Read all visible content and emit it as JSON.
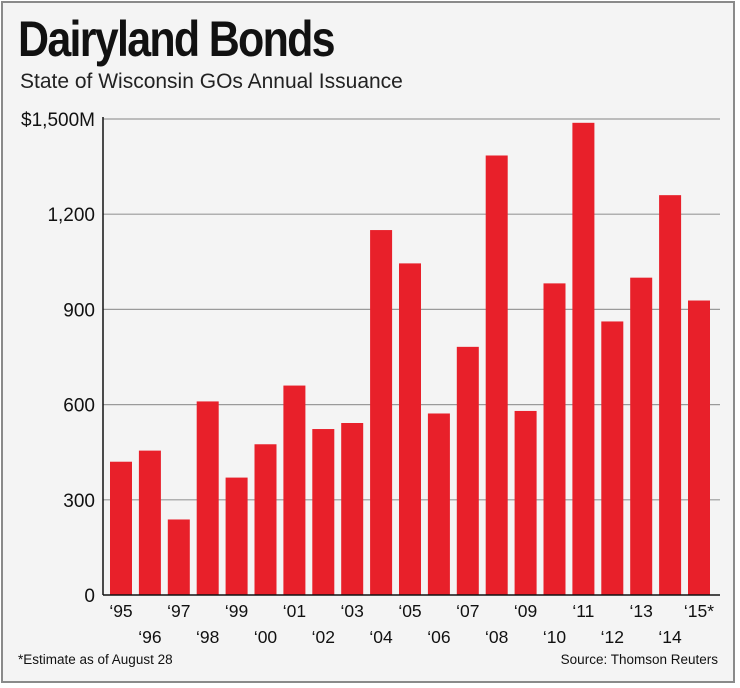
{
  "chart_data": {
    "type": "bar",
    "title": "Dairyland Bonds",
    "subtitle": "State of Wisconsin GOs Annual Issuance",
    "categories": [
      "‘95",
      "‘96",
      "‘97",
      "‘98",
      "‘99",
      "‘00",
      "‘01",
      "‘02",
      "‘03",
      "‘04",
      "‘05",
      "‘06",
      "‘07",
      "‘08",
      "‘09",
      "‘10",
      "‘11",
      "‘12",
      "‘13",
      "‘14",
      "‘15*"
    ],
    "values": [
      420,
      455,
      238,
      610,
      370,
      475,
      660,
      523,
      542,
      1150,
      1045,
      572,
      782,
      1385,
      580,
      982,
      1488,
      862,
      1000,
      1260,
      928
    ],
    "ylim": [
      0,
      1500
    ],
    "yticks": [
      0,
      300,
      600,
      900,
      1200,
      1500
    ],
    "ytick_labels": [
      "0",
      "300",
      "600",
      "900",
      "1,200",
      "$1,500M"
    ],
    "grid": true,
    "bar_color": "#e8202a",
    "footnote": "*Estimate as of August 28",
    "source": "Source: Thomson Reuters"
  }
}
